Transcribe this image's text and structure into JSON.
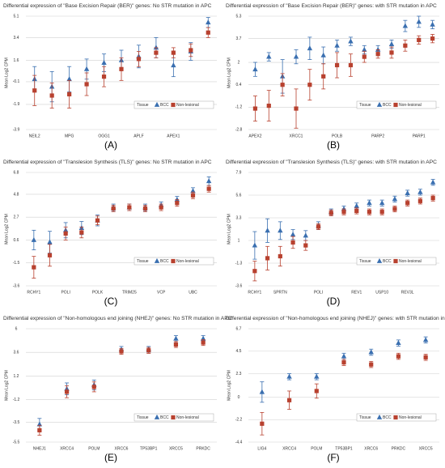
{
  "chart_data": [
    {
      "type": "errorbar",
      "title": "Differential expression of \"Base Excision Repair (BER)\" genes: No STR mutation in APC",
      "panel_label": "(A)",
      "y_label": "Mean Log2 CPM",
      "legend_title": "Tissue",
      "legend": "lower right",
      "grid": true,
      "categories": [
        "NEIL2",
        null,
        "MPG",
        null,
        "OGG1",
        null,
        "APLF",
        null,
        "APEX1",
        null,
        null
      ],
      "ylim": [
        -3.9,
        5.1
      ],
      "yticks": [
        -3.9,
        -1.9,
        -0.1,
        1.6,
        3.4,
        5.1
      ],
      "series": [
        {
          "name": "BCC",
          "color": "#3a6fb0",
          "marker": "triangle",
          "values": [
            0.1,
            -0.5,
            0.1,
            0.9,
            1.4,
            1.6,
            1.9,
            2.6,
            1.2,
            2.3,
            4.6
          ],
          "errors": [
            1.0,
            1.2,
            1.0,
            0.8,
            0.7,
            0.8,
            0.9,
            0.8,
            0.9,
            0.7,
            0.4
          ]
        },
        {
          "name": "Non-lesional",
          "color": "#b8412f",
          "marker": "square",
          "values": [
            -0.8,
            -1.2,
            -1.1,
            -0.3,
            0.3,
            0.9,
            1.7,
            2.2,
            2.2,
            2.4,
            3.8
          ],
          "errors": [
            1.2,
            1.0,
            1.1,
            0.9,
            0.8,
            0.9,
            0.6,
            0.4,
            0.4,
            0.5,
            0.4
          ]
        }
      ]
    },
    {
      "type": "errorbar",
      "title": "Differential expression of \"Base Excision Repair (BER)\" genes: with STR mutation in APC",
      "panel_label": "(B)",
      "y_label": "Mean Log2 CPM",
      "legend_title": "Tissue",
      "legend": "lower right",
      "grid": true,
      "categories": [
        "APEX2",
        null,
        null,
        "XRCC1",
        null,
        null,
        "POLB",
        null,
        null,
        "PARP2",
        null,
        null,
        "PARP1",
        null
      ],
      "ylim": [
        -2.8,
        5.3
      ],
      "yticks": [
        -2.8,
        -1.2,
        0.4,
        2.0,
        3.7,
        5.3
      ],
      "series": [
        {
          "name": "BCC",
          "color": "#3a6fb0",
          "marker": "triangle",
          "values": [
            1.5,
            2.4,
            1.0,
            2.4,
            3.0,
            2.5,
            3.2,
            3.5,
            2.9,
            2.9,
            3.3,
            4.6,
            4.9,
            4.7
          ],
          "errors": [
            0.5,
            0.3,
            1.2,
            0.5,
            0.8,
            0.6,
            0.4,
            0.3,
            0.3,
            0.3,
            0.3,
            0.4,
            0.4,
            0.3
          ]
        },
        {
          "name": "Non-lesional",
          "color": "#b8412f",
          "marker": "square",
          "values": [
            -1.3,
            -1.1,
            0.4,
            -1.3,
            0.4,
            1.0,
            1.8,
            1.8,
            2.4,
            2.6,
            2.7,
            3.2,
            3.6,
            3.7
          ],
          "errors": [
            0.9,
            1.1,
            0.8,
            1.4,
            1.1,
            0.9,
            0.9,
            0.8,
            0.4,
            0.3,
            0.4,
            0.4,
            0.3,
            0.3
          ]
        }
      ]
    },
    {
      "type": "errorbar",
      "title": "Differential expression of \"Translesion Synthesis (TLS)\" genes: No STR mutation in APC",
      "panel_label": "(C)",
      "y_label": "Mean Log2 CPM",
      "legend_title": "Tissue",
      "legend": "lower right",
      "grid": true,
      "categories": [
        "RCHY1",
        null,
        "POLI",
        null,
        "POLK",
        null,
        "TRIM25",
        null,
        "VCP",
        null,
        "UBC",
        null
      ],
      "ylim": [
        -3.6,
        6.8
      ],
      "yticks": [
        -3.6,
        -1.5,
        0.6,
        2.7,
        4.8,
        6.8
      ],
      "series": [
        {
          "name": "BCC",
          "color": "#3a6fb0",
          "marker": "triangle",
          "values": [
            0.6,
            0.4,
            1.5,
            1.7,
            2.4,
            3.6,
            3.6,
            3.6,
            3.8,
            4.3,
            5.1,
            6.0
          ],
          "errors": [
            0.9,
            1.0,
            0.7,
            0.6,
            0.5,
            0.3,
            0.3,
            0.3,
            0.3,
            0.3,
            0.3,
            0.4
          ]
        },
        {
          "name": "Non-lesional",
          "color": "#b8412f",
          "marker": "square",
          "values": [
            -1.9,
            -0.8,
            1.2,
            1.3,
            2.4,
            3.5,
            3.6,
            3.5,
            3.6,
            4.0,
            4.7,
            5.3
          ],
          "errors": [
            1.0,
            1.0,
            0.6,
            0.5,
            0.4,
            0.3,
            0.3,
            0.3,
            0.3,
            0.3,
            0.3,
            0.3
          ]
        }
      ]
    },
    {
      "type": "errorbar",
      "title": "Differential expression of \"Translesion Synthesis (TLS)\" genes: with STR mutation in APC",
      "panel_label": "(D)",
      "y_label": "Mean Log2 CPM",
      "legend_title": "Tissue",
      "legend": "lower right",
      "grid": true,
      "categories": [
        "RCHY1",
        null,
        "SPRTN",
        null,
        null,
        "POLI",
        null,
        null,
        "REV1",
        null,
        "USP10",
        null,
        "REV3L",
        null,
        null
      ],
      "ylim": [
        -3.6,
        7.9
      ],
      "yticks": [
        -3.6,
        -1.3,
        1.0,
        3.3,
        5.6,
        7.9
      ],
      "series": [
        {
          "name": "BCC",
          "color": "#3a6fb0",
          "marker": "triangle",
          "values": [
            0.5,
            2.0,
            2.0,
            1.6,
            1.5,
            2.5,
            3.9,
            4.2,
            4.5,
            4.8,
            4.8,
            5.2,
            5.8,
            5.9,
            6.9
          ],
          "errors": [
            1.4,
            1.2,
            0.9,
            0.5,
            0.5,
            0.4,
            0.3,
            0.3,
            0.3,
            0.3,
            0.3,
            0.3,
            0.3,
            0.3,
            0.3
          ]
        },
        {
          "name": "Non-lesional",
          "color": "#b8412f",
          "marker": "square",
          "values": [
            -2.1,
            -0.8,
            -0.6,
            0.8,
            0.5,
            2.4,
            3.8,
            3.9,
            4.0,
            3.9,
            3.9,
            4.2,
            4.8,
            5.0,
            5.3
          ],
          "errors": [
            1.0,
            1.2,
            1.0,
            0.6,
            0.5,
            0.3,
            0.3,
            0.3,
            0.3,
            0.3,
            0.3,
            0.3,
            0.3,
            0.3,
            0.3
          ]
        }
      ]
    },
    {
      "type": "errorbar",
      "title": "Differential expression of \"Non-homologous end joining (NHEJ)\" genes: No STR mutation in APC",
      "panel_label": "(E)",
      "y_label": "Mean Log2 CPM",
      "legend_title": "Tissue",
      "legend": "lower right",
      "grid": true,
      "categories": [
        "NHEJ1",
        "XRCC4",
        "POLM",
        "XRCC6",
        "TP53BP1",
        "XRCC5",
        "PRKDC"
      ],
      "ylim": [
        -5.5,
        6
      ],
      "yticks": [
        -5.5,
        -3.5,
        -1.2,
        1.2,
        3.6,
        6
      ],
      "series": [
        {
          "name": "BCC",
          "color": "#3a6fb0",
          "marker": "triangle",
          "values": [
            -3.7,
            -0.1,
            0.3,
            3.9,
            3.9,
            5.0,
            5.0
          ],
          "errors": [
            0.6,
            0.6,
            0.5,
            0.3,
            0.3,
            0.3,
            0.3
          ]
        },
        {
          "name": "Non-lesional",
          "color": "#b8412f",
          "marker": "square",
          "values": [
            -4.3,
            -0.4,
            0.1,
            3.7,
            3.8,
            4.4,
            4.6
          ],
          "errors": [
            0.5,
            0.6,
            0.5,
            0.3,
            0.3,
            0.3,
            0.3
          ]
        }
      ]
    },
    {
      "type": "errorbar",
      "title": "Differential expression of \"Non-homologous end joining (NHEJ)\" genes: with STR mutation in APC",
      "panel_label": "(F)",
      "y_label": "Mean Log2 CPM",
      "legend_title": "Tissue",
      "legend": "lower right",
      "grid": true,
      "categories": [
        "LIG4",
        "XRCC4",
        "POLM",
        "TP53BP1",
        "XRCC6",
        "PRKDC",
        "XRCC5"
      ],
      "ylim": [
        -4.4,
        6.7
      ],
      "yticks": [
        -4.4,
        -2.2,
        0,
        2.3,
        4.5,
        6.7
      ],
      "series": [
        {
          "name": "BCC",
          "color": "#3a6fb0",
          "marker": "triangle",
          "values": [
            0.5,
            2.0,
            2.0,
            4.0,
            4.4,
            5.3,
            5.6
          ],
          "errors": [
            1.0,
            0.3,
            0.3,
            0.3,
            0.3,
            0.3,
            0.3
          ]
        },
        {
          "name": "Non-lesional",
          "color": "#b8412f",
          "marker": "square",
          "values": [
            -2.6,
            -0.3,
            0.6,
            3.4,
            3.2,
            4.0,
            3.9
          ],
          "errors": [
            1.1,
            0.9,
            0.7,
            0.3,
            0.3,
            0.3,
            0.3
          ]
        }
      ]
    }
  ]
}
